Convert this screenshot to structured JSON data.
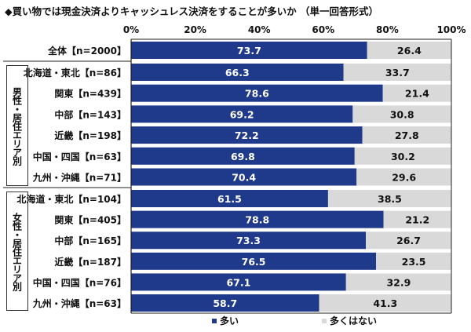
{
  "title": "◆買い物では現金決済よりキャッシュレス決済をすることが多いか （単一回答形式）",
  "chart_data": {
    "type": "bar",
    "stacked": true,
    "orientation": "horizontal",
    "xlim": [
      0,
      100
    ],
    "x_ticks": [
      "0%",
      "20%",
      "40%",
      "60%",
      "80%",
      "100%"
    ],
    "groups": [
      "男性・居住エリア別",
      "女性・居住エリア別"
    ],
    "categories": [
      "全体【n=2000】",
      "北海道・東北【n=86】",
      "関東【n=439】",
      "中部【n=143】",
      "近畿【n=198】",
      "中国・四国【n=63】",
      "九州・沖縄【n=71】",
      "北海道・東北【n=104】",
      "関東【n=405】",
      "中部【n=165】",
      "近畿【n=187】",
      "中国・四国【n=76】",
      "九州・沖縄【n=63】"
    ],
    "series": [
      {
        "name": "多い",
        "color": "#1f3a8a",
        "values": [
          73.7,
          66.3,
          78.6,
          69.2,
          72.2,
          69.8,
          70.4,
          61.5,
          78.8,
          73.3,
          76.5,
          67.1,
          58.7
        ]
      },
      {
        "name": "多くはない",
        "color": "#d9d9d9",
        "values": [
          26.4,
          33.7,
          21.4,
          30.8,
          27.8,
          30.2,
          29.6,
          38.5,
          21.2,
          26.7,
          23.5,
          32.9,
          41.3
        ]
      }
    ],
    "legend": "bottom"
  }
}
